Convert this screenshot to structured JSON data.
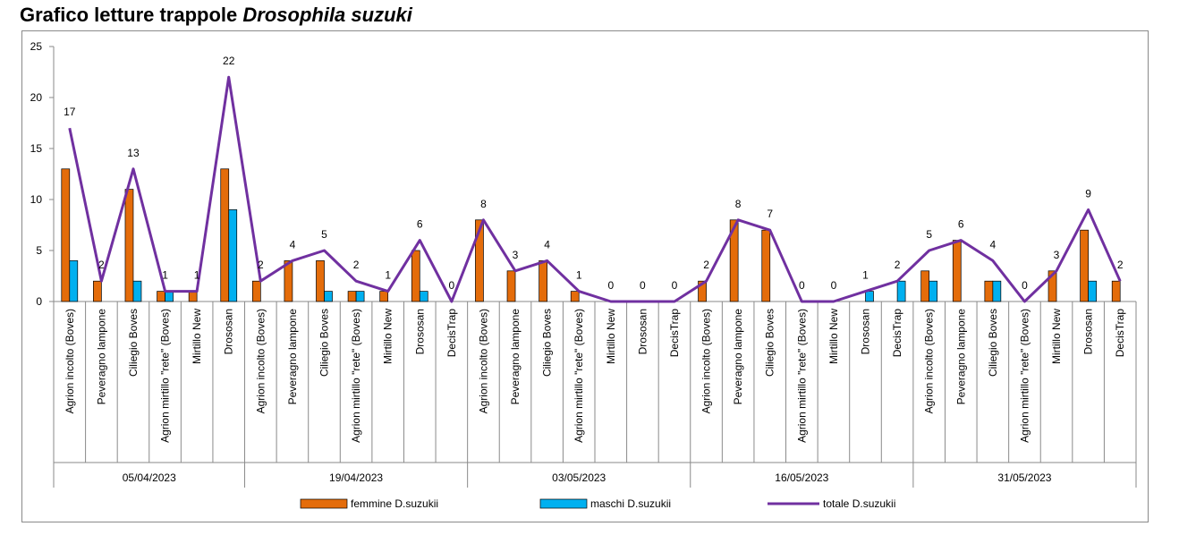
{
  "title": {
    "main": "Grafico letture trappole ",
    "species": "Drosophila suzuki"
  },
  "chart_data": {
    "type": "bar",
    "ylim": [
      0,
      25
    ],
    "yticks": [
      0,
      5,
      10,
      15,
      20,
      25
    ],
    "grid": false,
    "legend_position": "bottom",
    "groups": [
      {
        "date": "05/04/2023",
        "categories": [
          "Agrion incolto (Boves)",
          "Peveragno lampone",
          "Ciliegio Boves",
          "Agrion mirtillo \"rete\" (Boves)",
          "Mirtillo New",
          "Drososan"
        ]
      },
      {
        "date": "19/04/2023",
        "categories": [
          "Agrion incolto (Boves)",
          "Peveragno lampone",
          "Ciliegio Boves",
          "Agrion mirtillo \"rete\" (Boves)",
          "Mirtillo New",
          "Drososan",
          "DecisTrap"
        ]
      },
      {
        "date": "03/05/2023",
        "categories": [
          "Agrion incolto (Boves)",
          "Peveragno lampone",
          "Ciliegio Boves",
          "Agrion mirtillo \"rete\" (Boves)",
          "Mirtillo New",
          "Drososan",
          "DecisTrap"
        ]
      },
      {
        "date": "16/05/2023",
        "categories": [
          "Agrion incolto (Boves)",
          "Peveragno lampone",
          "Ciliegio Boves",
          "Agrion mirtillo \"rete\" (Boves)",
          "Mirtillo New",
          "Drososan",
          "DecisTrap"
        ]
      },
      {
        "date": "31/05/2023",
        "categories": [
          "Agrion incolto (Boves)",
          "Peveragno lampone",
          "Ciliegio Boves",
          "Agrion mirtillo \"rete\" (Boves)",
          "Mirtillo New",
          "Drososan",
          "DecisTrap"
        ]
      }
    ],
    "series": [
      {
        "name": "femmine D.suzukii",
        "type": "bar",
        "color": "#E46C0A",
        "values": [
          13,
          2,
          11,
          1,
          1,
          13,
          2,
          4,
          4,
          1,
          1,
          5,
          0,
          8,
          3,
          4,
          1,
          0,
          0,
          0,
          2,
          8,
          7,
          0,
          0,
          0,
          0,
          3,
          6,
          2,
          0,
          3,
          7,
          2
        ]
      },
      {
        "name": "maschi D.suzukii",
        "type": "bar",
        "color": "#00B0F0",
        "values": [
          4,
          0,
          2,
          1,
          0,
          9,
          0,
          0,
          1,
          1,
          0,
          1,
          0,
          0,
          0,
          0,
          0,
          0,
          0,
          0,
          0,
          0,
          0,
          0,
          0,
          1,
          2,
          2,
          0,
          2,
          0,
          0,
          2,
          0
        ]
      },
      {
        "name": "totale D.suzukii",
        "type": "line",
        "color": "#7030A0",
        "values": [
          17,
          2,
          13,
          1,
          1,
          22,
          2,
          4,
          5,
          2,
          1,
          6,
          0,
          8,
          3,
          4,
          1,
          0,
          0,
          0,
          2,
          8,
          7,
          0,
          0,
          1,
          2,
          5,
          6,
          4,
          0,
          3,
          9,
          2
        ]
      }
    ]
  }
}
